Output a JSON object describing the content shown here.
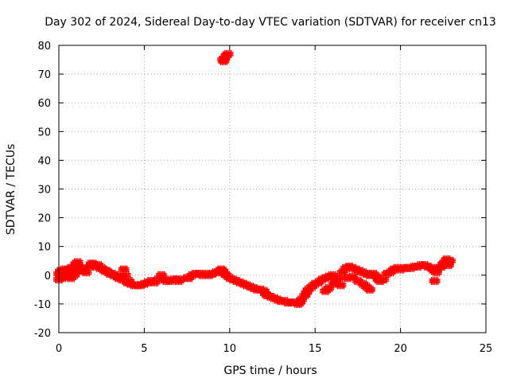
{
  "chart_data": {
    "type": "scatter",
    "title": "Day 302 of 2024, Sidereal Day-to-day VTEC variation (SDTVAR) for receiver cn13",
    "xlabel": "GPS time / hours",
    "ylabel": "SDTVAR / TECUs",
    "xlim": [
      0,
      25
    ],
    "ylim": [
      -20,
      80
    ],
    "xticks": [
      "0",
      "5",
      "10",
      "15",
      "20",
      "25"
    ],
    "yticks": [
      "-20",
      "-10",
      "0",
      "10",
      "20",
      "30",
      "40",
      "50",
      "60",
      "70",
      "80"
    ],
    "grid": true,
    "marker": "+",
    "series": [
      {
        "name": "SDTVAR",
        "color": "#ff0000",
        "points": [
          [
            0.0,
            0.5
          ],
          [
            0.0,
            -1.5
          ],
          [
            0.1,
            1.5
          ],
          [
            0.2,
            0.0
          ],
          [
            0.2,
            -1.0
          ],
          [
            0.3,
            2.0
          ],
          [
            0.3,
            -0.5
          ],
          [
            0.4,
            1.0
          ],
          [
            0.5,
            -0.5
          ],
          [
            0.5,
            2.0
          ],
          [
            0.6,
            0.5
          ],
          [
            0.7,
            2.5
          ],
          [
            0.7,
            -1.0
          ],
          [
            0.8,
            1.5
          ],
          [
            0.9,
            3.0
          ],
          [
            0.9,
            0.0
          ],
          [
            1.0,
            4.0
          ],
          [
            1.0,
            1.0
          ],
          [
            1.1,
            4.5
          ],
          [
            1.2,
            3.0
          ],
          [
            1.2,
            2.5
          ],
          [
            1.4,
            2.0
          ],
          [
            1.5,
            1.5
          ],
          [
            1.6,
            1.0
          ],
          [
            1.8,
            3.0
          ],
          [
            1.9,
            4.0
          ],
          [
            2.0,
            4.0
          ],
          [
            2.1,
            3.5
          ],
          [
            2.2,
            3.0
          ],
          [
            2.3,
            3.5
          ],
          [
            2.4,
            2.5
          ],
          [
            2.5,
            2.5
          ],
          [
            2.6,
            2.0
          ],
          [
            2.7,
            1.5
          ],
          [
            2.8,
            1.5
          ],
          [
            2.9,
            1.0
          ],
          [
            3.0,
            0.5
          ],
          [
            3.1,
            0.5
          ],
          [
            3.2,
            0.0
          ],
          [
            3.3,
            0.0
          ],
          [
            3.4,
            -0.5
          ],
          [
            3.5,
            -1.0
          ],
          [
            3.6,
            -1.0
          ],
          [
            3.7,
            -1.5
          ],
          [
            3.8,
            2.0
          ],
          [
            3.8,
            -1.0
          ],
          [
            3.9,
            0.0
          ],
          [
            4.0,
            -2.5
          ],
          [
            4.1,
            -2.0
          ],
          [
            4.2,
            -3.0
          ],
          [
            4.4,
            -3.5
          ],
          [
            4.6,
            -3.5
          ],
          [
            4.8,
            -3.5
          ],
          [
            5.0,
            -3.0
          ],
          [
            5.2,
            -2.5
          ],
          [
            5.4,
            -2.0
          ],
          [
            5.6,
            -2.5
          ],
          [
            5.8,
            -1.5
          ],
          [
            6.0,
            0.0
          ],
          [
            6.2,
            -1.5
          ],
          [
            6.3,
            -2.0
          ],
          [
            6.5,
            -2.0
          ],
          [
            6.7,
            -1.5
          ],
          [
            6.9,
            -1.5
          ],
          [
            7.0,
            -2.0
          ],
          [
            7.1,
            -1.5
          ],
          [
            7.5,
            -1.0
          ],
          [
            7.6,
            -1.0
          ],
          [
            7.8,
            0.0
          ],
          [
            8.0,
            0.5
          ],
          [
            8.2,
            0.5
          ],
          [
            8.4,
            0.0
          ],
          [
            8.6,
            0.5
          ],
          [
            8.8,
            0.0
          ],
          [
            9.0,
            0.5
          ],
          [
            9.2,
            1.0
          ],
          [
            9.4,
            1.5
          ],
          [
            9.5,
            2.0
          ],
          [
            9.6,
            1.5
          ],
          [
            9.7,
            0.5
          ],
          [
            9.8,
            0.0
          ],
          [
            10.0,
            -1.0
          ],
          [
            10.2,
            -1.5
          ],
          [
            10.4,
            -2.0
          ],
          [
            10.6,
            -2.5
          ],
          [
            10.8,
            -3.0
          ],
          [
            11.0,
            -3.5
          ],
          [
            11.2,
            -4.0
          ],
          [
            11.4,
            -4.5
          ],
          [
            11.6,
            -5.0
          ],
          [
            11.8,
            -5.0
          ],
          [
            12.0,
            -5.5
          ],
          [
            12.1,
            -6.5
          ],
          [
            12.2,
            -7.0
          ],
          [
            12.4,
            -7.5
          ],
          [
            12.6,
            -8.0
          ],
          [
            12.8,
            -8.5
          ],
          [
            13.0,
            -9.0
          ],
          [
            13.2,
            -9.0
          ],
          [
            13.4,
            -9.5
          ],
          [
            13.6,
            -9.5
          ],
          [
            13.8,
            -9.5
          ],
          [
            14.0,
            -10.0
          ],
          [
            14.1,
            -9.5
          ],
          [
            14.2,
            -8.5
          ],
          [
            14.4,
            -7.0
          ],
          [
            14.5,
            -6.0
          ],
          [
            14.6,
            -5.0
          ],
          [
            14.8,
            -4.0
          ],
          [
            15.0,
            -3.0
          ],
          [
            15.2,
            -2.5
          ],
          [
            15.4,
            -1.5
          ],
          [
            15.6,
            -1.0
          ],
          [
            15.8,
            -0.5
          ],
          [
            15.6,
            -5.5
          ],
          [
            15.8,
            -4.5
          ],
          [
            16.0,
            0.0
          ],
          [
            16.1,
            -3.0
          ],
          [
            16.2,
            -2.0
          ],
          [
            16.4,
            -1.0
          ],
          [
            16.5,
            -3.5
          ],
          [
            16.6,
            1.0
          ],
          [
            16.8,
            2.5
          ],
          [
            17.0,
            3.0
          ],
          [
            17.2,
            2.5
          ],
          [
            17.4,
            2.0
          ],
          [
            16.9,
            -1.0
          ],
          [
            17.2,
            -0.5
          ],
          [
            17.5,
            -2.0
          ],
          [
            17.8,
            -3.0
          ],
          [
            18.0,
            -4.0
          ],
          [
            18.2,
            -5.0
          ],
          [
            17.6,
            1.5
          ],
          [
            17.8,
            1.0
          ],
          [
            18.0,
            0.5
          ],
          [
            18.2,
            0.0
          ],
          [
            18.4,
            0.5
          ],
          [
            18.6,
            -0.5
          ],
          [
            18.7,
            -1.5
          ],
          [
            18.8,
            -2.0
          ],
          [
            19.0,
            -1.5
          ],
          [
            19.2,
            0.5
          ],
          [
            19.4,
            1.0
          ],
          [
            19.6,
            2.0
          ],
          [
            19.8,
            2.5
          ],
          [
            20.0,
            2.0
          ],
          [
            20.2,
            2.5
          ],
          [
            20.4,
            2.5
          ],
          [
            20.6,
            2.5
          ],
          [
            20.8,
            3.0
          ],
          [
            21.0,
            3.0
          ],
          [
            21.2,
            3.5
          ],
          [
            21.4,
            3.5
          ],
          [
            21.6,
            3.0
          ],
          [
            21.8,
            2.5
          ],
          [
            21.9,
            2.0
          ],
          [
            22.0,
            1.5
          ],
          [
            22.1,
            1.0
          ],
          [
            22.0,
            -2.0
          ],
          [
            22.2,
            2.5
          ],
          [
            22.4,
            3.0
          ],
          [
            22.5,
            4.0
          ],
          [
            22.6,
            4.5
          ],
          [
            22.7,
            5.5
          ],
          [
            22.8,
            4.5
          ],
          [
            22.9,
            5.0
          ],
          [
            22.8,
            3.5
          ],
          [
            9.6,
            75.0
          ],
          [
            9.7,
            75.5
          ],
          [
            9.8,
            76.5
          ],
          [
            9.9,
            77.0
          ],
          [
            9.65,
            74.5
          ]
        ]
      }
    ]
  }
}
